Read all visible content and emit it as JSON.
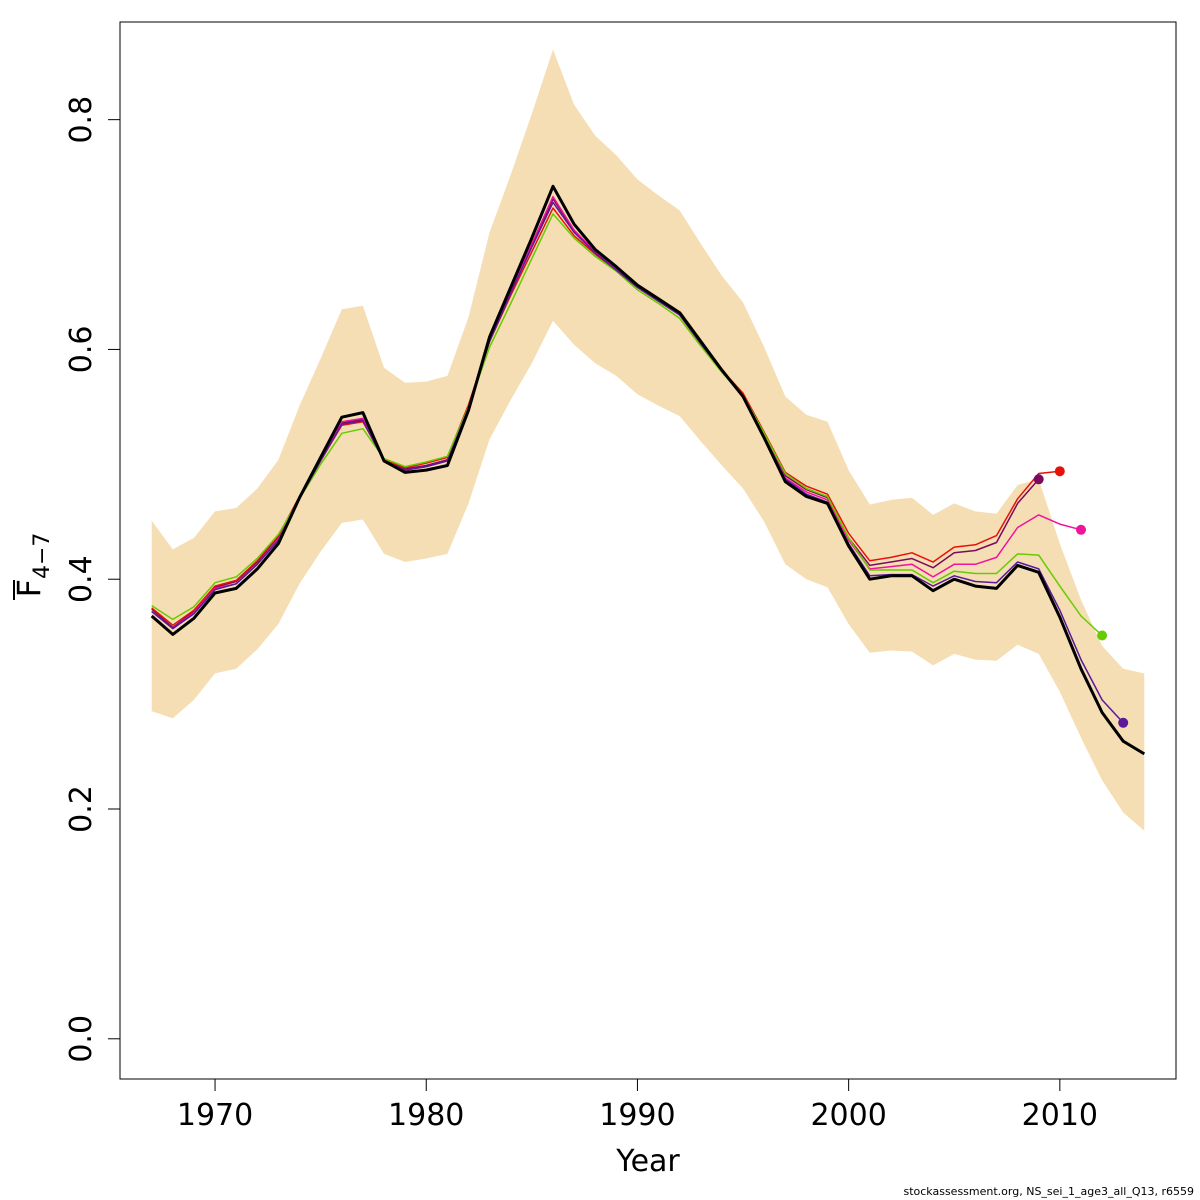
{
  "chart_data": {
    "type": "line",
    "xlabel": "Year",
    "ylabel": {
      "main": "F",
      "subscript": "4−7"
    },
    "xlim": [
      1965.5,
      2015.5
    ],
    "ylim": [
      -0.035,
      0.885
    ],
    "xticks": [
      1970,
      1980,
      1990,
      2000,
      2010
    ],
    "yticks": [
      0.0,
      0.2,
      0.4,
      0.6,
      0.8
    ],
    "ytick_labels": [
      "0.0",
      "0.2",
      "0.4",
      "0.6",
      "0.8"
    ],
    "band_color": "#F5DEB3",
    "band": {
      "x": [
        1967,
        1968,
        1969,
        1970,
        1971,
        1972,
        1973,
        1974,
        1975,
        1976,
        1977,
        1978,
        1979,
        1980,
        1981,
        1982,
        1983,
        1984,
        1985,
        1986,
        1987,
        1988,
        1989,
        1990,
        1991,
        1992,
        1993,
        1994,
        1995,
        1996,
        1997,
        1998,
        1999,
        2000,
        2001,
        2002,
        2003,
        2004,
        2005,
        2006,
        2007,
        2008,
        2009,
        2010,
        2011,
        2012,
        2013,
        2014
      ],
      "upper": [
        0.451,
        0.426,
        0.436,
        0.459,
        0.462,
        0.479,
        0.504,
        0.551,
        0.592,
        0.635,
        0.638,
        0.584,
        0.571,
        0.572,
        0.577,
        0.628,
        0.702,
        0.752,
        0.805,
        0.861,
        0.813,
        0.786,
        0.769,
        0.748,
        0.734,
        0.721,
        0.692,
        0.664,
        0.641,
        0.602,
        0.559,
        0.543,
        0.537,
        0.495,
        0.465,
        0.469,
        0.471,
        0.456,
        0.466,
        0.459,
        0.457,
        0.482,
        0.487,
        0.431,
        0.382,
        0.342,
        0.322,
        0.318
      ],
      "lower": [
        0.285,
        0.279,
        0.295,
        0.318,
        0.322,
        0.339,
        0.361,
        0.396,
        0.424,
        0.449,
        0.452,
        0.422,
        0.415,
        0.418,
        0.422,
        0.466,
        0.522,
        0.556,
        0.588,
        0.625,
        0.604,
        0.588,
        0.577,
        0.561,
        0.551,
        0.542,
        0.52,
        0.499,
        0.479,
        0.45,
        0.413,
        0.4,
        0.393,
        0.361,
        0.336,
        0.338,
        0.337,
        0.325,
        0.335,
        0.33,
        0.329,
        0.343,
        0.335,
        0.302,
        0.262,
        0.225,
        0.197,
        0.181
      ]
    },
    "series": [
      {
        "color": "#000000",
        "width": 3,
        "x": [
          1967,
          1968,
          1969,
          1970,
          1971,
          1972,
          1973,
          1974,
          1975,
          1976,
          1977,
          1978,
          1979,
          1980,
          1981,
          1982,
          1983,
          1984,
          1985,
          1986,
          1987,
          1988,
          1989,
          1990,
          1991,
          1992,
          1993,
          1994,
          1995,
          1996,
          1997,
          1998,
          1999,
          2000,
          2001,
          2002,
          2003,
          2004,
          2005,
          2006,
          2007,
          2008,
          2009,
          2010,
          2011,
          2012,
          2013,
          2014
        ],
        "y": [
          0.368,
          0.352,
          0.366,
          0.388,
          0.392,
          0.409,
          0.431,
          0.471,
          0.506,
          0.541,
          0.545,
          0.503,
          0.493,
          0.495,
          0.499,
          0.547,
          0.611,
          0.654,
          0.697,
          0.742,
          0.709,
          0.687,
          0.672,
          0.656,
          0.644,
          0.632,
          0.607,
          0.582,
          0.559,
          0.523,
          0.485,
          0.472,
          0.466,
          0.429,
          0.4,
          0.403,
          0.403,
          0.39,
          0.4,
          0.394,
          0.392,
          0.412,
          0.406,
          0.367,
          0.322,
          0.284,
          0.259,
          0.248
        ]
      },
      {
        "color": "#7B0A5E",
        "width": 1.5,
        "endpoint": true,
        "x": [
          1967,
          1968,
          1969,
          1970,
          1971,
          1972,
          1973,
          1974,
          1975,
          1976,
          1977,
          1978,
          1979,
          1980,
          1981,
          1982,
          1983,
          1984,
          1985,
          1986,
          1987,
          1988,
          1989,
          1990,
          1991,
          1992,
          1993,
          1994,
          1995,
          1996,
          1997,
          1998,
          1999,
          2000,
          2001,
          2002,
          2003,
          2004,
          2005,
          2006,
          2007,
          2008,
          2009
        ],
        "y": [
          0.374,
          0.358,
          0.372,
          0.393,
          0.398,
          0.415,
          0.437,
          0.472,
          0.504,
          0.536,
          0.539,
          0.504,
          0.496,
          0.499,
          0.504,
          0.551,
          0.609,
          0.651,
          0.69,
          0.731,
          0.703,
          0.685,
          0.67,
          0.655,
          0.643,
          0.631,
          0.606,
          0.582,
          0.561,
          0.526,
          0.49,
          0.478,
          0.471,
          0.436,
          0.412,
          0.415,
          0.418,
          0.41,
          0.423,
          0.425,
          0.432,
          0.466,
          0.487
        ]
      },
      {
        "color": "#E8100A",
        "width": 1.5,
        "endpoint": true,
        "x": [
          1967,
          1968,
          1969,
          1970,
          1971,
          1972,
          1973,
          1974,
          1975,
          1976,
          1977,
          1978,
          1979,
          1980,
          1981,
          1982,
          1983,
          1984,
          1985,
          1986,
          1987,
          1988,
          1989,
          1990,
          1991,
          1992,
          1993,
          1994,
          1995,
          1996,
          1997,
          1998,
          1999,
          2000,
          2001,
          2002,
          2003,
          2004,
          2005,
          2006,
          2007,
          2008,
          2009,
          2010
        ],
        "y": [
          0.375,
          0.36,
          0.373,
          0.394,
          0.399,
          0.416,
          0.438,
          0.472,
          0.503,
          0.534,
          0.537,
          0.504,
          0.497,
          0.501,
          0.506,
          0.552,
          0.607,
          0.647,
          0.685,
          0.723,
          0.699,
          0.683,
          0.669,
          0.654,
          0.642,
          0.63,
          0.605,
          0.582,
          0.562,
          0.528,
          0.493,
          0.481,
          0.474,
          0.44,
          0.416,
          0.419,
          0.423,
          0.415,
          0.428,
          0.43,
          0.438,
          0.47,
          0.492,
          0.494
        ]
      },
      {
        "color": "#F0139B",
        "width": 1.5,
        "endpoint": true,
        "x": [
          1967,
          1968,
          1969,
          1970,
          1971,
          1972,
          1973,
          1974,
          1975,
          1976,
          1977,
          1978,
          1979,
          1980,
          1981,
          1982,
          1983,
          1984,
          1985,
          1986,
          1987,
          1988,
          1989,
          1990,
          1991,
          1992,
          1993,
          1994,
          1995,
          1996,
          1997,
          1998,
          1999,
          2000,
          2001,
          2002,
          2003,
          2004,
          2005,
          2006,
          2007,
          2008,
          2009,
          2010,
          2011
        ],
        "y": [
          0.372,
          0.357,
          0.371,
          0.392,
          0.396,
          0.413,
          0.435,
          0.471,
          0.504,
          0.537,
          0.54,
          0.503,
          0.495,
          0.498,
          0.503,
          0.55,
          0.609,
          0.651,
          0.692,
          0.733,
          0.704,
          0.685,
          0.67,
          0.655,
          0.643,
          0.631,
          0.606,
          0.582,
          0.56,
          0.525,
          0.488,
          0.476,
          0.469,
          0.434,
          0.409,
          0.411,
          0.413,
          0.402,
          0.413,
          0.413,
          0.419,
          0.445,
          0.456,
          0.448,
          0.443
        ]
      },
      {
        "color": "#66CC00",
        "width": 1.5,
        "endpoint": true,
        "x": [
          1967,
          1968,
          1969,
          1970,
          1971,
          1972,
          1973,
          1974,
          1975,
          1976,
          1977,
          1978,
          1979,
          1980,
          1981,
          1982,
          1983,
          1984,
          1985,
          1986,
          1987,
          1988,
          1989,
          1990,
          1991,
          1992,
          1993,
          1994,
          1995,
          1996,
          1997,
          1998,
          1999,
          2000,
          2001,
          2002,
          2003,
          2004,
          2005,
          2006,
          2007,
          2008,
          2009,
          2010,
          2011,
          2012
        ],
        "y": [
          0.377,
          0.365,
          0.376,
          0.397,
          0.402,
          0.418,
          0.439,
          0.47,
          0.5,
          0.527,
          0.531,
          0.505,
          0.498,
          0.502,
          0.507,
          0.55,
          0.602,
          0.64,
          0.679,
          0.718,
          0.697,
          0.681,
          0.668,
          0.652,
          0.64,
          0.627,
          0.603,
          0.58,
          0.56,
          0.527,
          0.492,
          0.479,
          0.472,
          0.436,
          0.408,
          0.408,
          0.408,
          0.397,
          0.407,
          0.405,
          0.405,
          0.422,
          0.421,
          0.394,
          0.368,
          0.351
        ]
      },
      {
        "color": "#5A1A9A",
        "width": 1.5,
        "endpoint": true,
        "x": [
          1967,
          1968,
          1969,
          1970,
          1971,
          1972,
          1973,
          1974,
          1975,
          1976,
          1977,
          1978,
          1979,
          1980,
          1981,
          1982,
          1983,
          1984,
          1985,
          1986,
          1987,
          1988,
          1989,
          1990,
          1991,
          1992,
          1993,
          1994,
          1995,
          1996,
          1997,
          1998,
          1999,
          2000,
          2001,
          2002,
          2003,
          2004,
          2005,
          2006,
          2007,
          2008,
          2009,
          2010,
          2011,
          2012,
          2013
        ],
        "y": [
          0.372,
          0.357,
          0.37,
          0.391,
          0.396,
          0.413,
          0.434,
          0.47,
          0.503,
          0.535,
          0.538,
          0.503,
          0.495,
          0.498,
          0.503,
          0.549,
          0.607,
          0.649,
          0.689,
          0.728,
          0.702,
          0.684,
          0.669,
          0.654,
          0.642,
          0.63,
          0.605,
          0.581,
          0.559,
          0.524,
          0.487,
          0.474,
          0.467,
          0.431,
          0.403,
          0.404,
          0.404,
          0.394,
          0.403,
          0.398,
          0.397,
          0.415,
          0.409,
          0.373,
          0.33,
          0.295,
          0.275
        ]
      }
    ]
  },
  "credit": "stockassessment.org, NS_sei_1_age3_all_Q13, r6559"
}
